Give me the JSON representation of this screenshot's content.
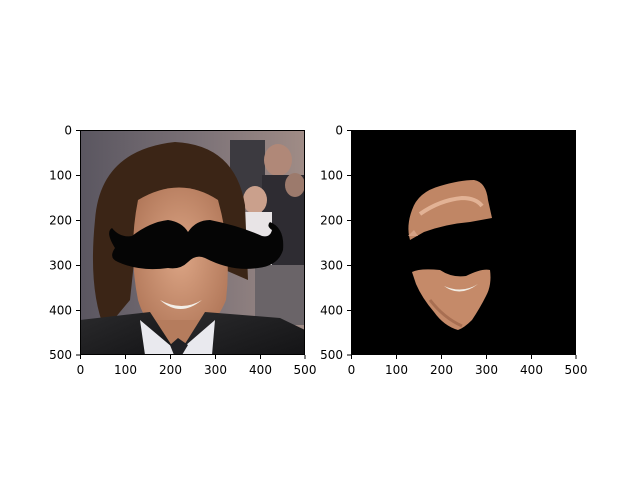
{
  "figure": {
    "panels": [
      {
        "name": "photo-with-mustache",
        "x_ticks": [
          "0",
          "100",
          "200",
          "300",
          "400",
          "500"
        ],
        "y_ticks": [
          "0",
          "100",
          "200",
          "300",
          "400",
          "500"
        ],
        "xlim": [
          0,
          500
        ],
        "ylim": [
          500,
          0
        ]
      },
      {
        "name": "masked-face",
        "x_ticks": [
          "0",
          "100",
          "200",
          "300",
          "400",
          "500"
        ],
        "y_ticks": [
          "0",
          "100",
          "200",
          "300",
          "400",
          "500"
        ],
        "xlim": [
          0,
          500
        ],
        "ylim": [
          500,
          0
        ]
      }
    ],
    "colors": {
      "background": "#000000",
      "mustache": "#050505",
      "skin": "#c98f6e",
      "hair": "#3b2516"
    }
  }
}
